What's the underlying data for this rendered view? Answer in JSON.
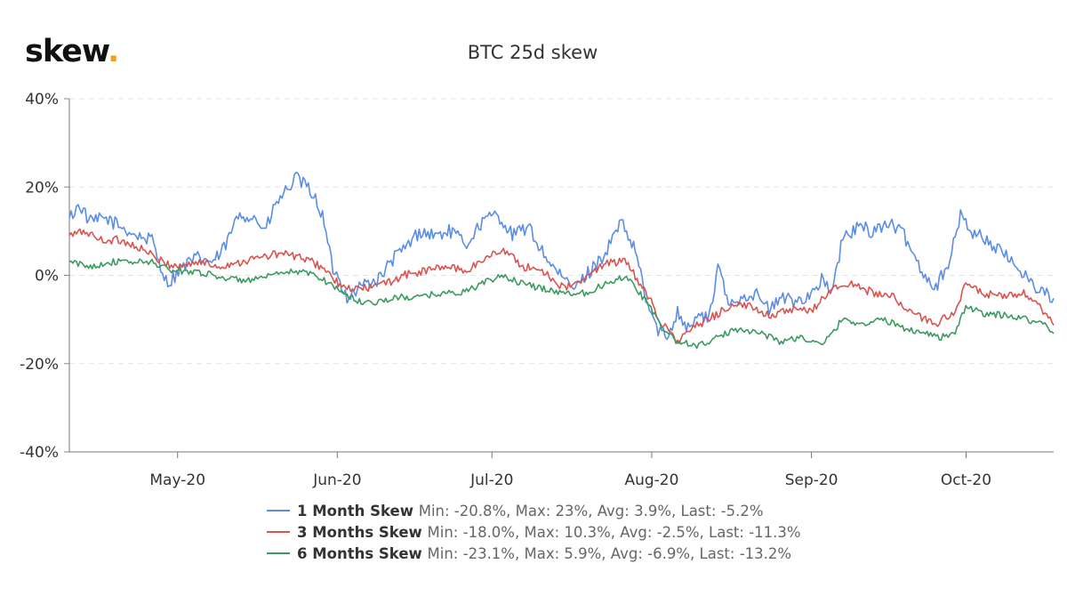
{
  "brand": {
    "logo_text": "skew",
    "logo_dot": ".",
    "dot_color": "#f0a020"
  },
  "chart_data": {
    "type": "line",
    "title": "BTC 25d skew",
    "xlabel": "",
    "ylabel": "",
    "x_range": [
      "2020-04-10",
      "2020-10-18"
    ],
    "ylim": [
      -40,
      40
    ],
    "y_ticks": [
      {
        "value": 40,
        "label": "40%"
      },
      {
        "value": 20,
        "label": "20%"
      },
      {
        "value": 0,
        "label": "0%"
      },
      {
        "value": -20,
        "label": "-20%"
      },
      {
        "value": -40,
        "label": "-40%"
      }
    ],
    "x_ticks": [
      {
        "date": "2020-05-01",
        "label": "May-20"
      },
      {
        "date": "2020-06-01",
        "label": "Jun-20"
      },
      {
        "date": "2020-07-01",
        "label": "Jul-20"
      },
      {
        "date": "2020-08-01",
        "label": "Aug-20"
      },
      {
        "date": "2020-09-01",
        "label": "Sep-20"
      },
      {
        "date": "2020-10-01",
        "label": "Oct-20"
      }
    ],
    "grid": {
      "horizontal": true,
      "style": "dashed"
    },
    "legend_position": "bottom",
    "series": [
      {
        "name": "1 Month Skew",
        "stats": "Min: -20.8%, Max: 23%, Avg: 3.9%, Last: -5.2%",
        "color": "#5b8de6",
        "points": [
          [
            "2020-04-10",
            13
          ],
          [
            "2020-04-12",
            16
          ],
          [
            "2020-04-14",
            12
          ],
          [
            "2020-04-17",
            13
          ],
          [
            "2020-04-20",
            11
          ],
          [
            "2020-04-23",
            9
          ],
          [
            "2020-04-26",
            8
          ],
          [
            "2020-04-29",
            -2
          ],
          [
            "2020-05-02",
            2
          ],
          [
            "2020-05-05",
            4
          ],
          [
            "2020-05-08",
            3
          ],
          [
            "2020-05-10",
            6
          ],
          [
            "2020-05-13",
            14
          ],
          [
            "2020-05-16",
            13
          ],
          [
            "2020-05-18",
            10
          ],
          [
            "2020-05-20",
            16
          ],
          [
            "2020-05-22",
            19
          ],
          [
            "2020-05-24",
            22
          ],
          [
            "2020-05-27",
            19
          ],
          [
            "2020-05-29",
            14
          ],
          [
            "2020-05-31",
            2
          ],
          [
            "2020-06-03",
            -5
          ],
          [
            "2020-06-06",
            -2
          ],
          [
            "2020-06-09",
            -1
          ],
          [
            "2020-06-12",
            4
          ],
          [
            "2020-06-14",
            6
          ],
          [
            "2020-06-17",
            10
          ],
          [
            "2020-06-20",
            9
          ],
          [
            "2020-06-23",
            10
          ],
          [
            "2020-06-26",
            7
          ],
          [
            "2020-06-29",
            12
          ],
          [
            "2020-07-02",
            14
          ],
          [
            "2020-07-05",
            9
          ],
          [
            "2020-07-08",
            11
          ],
          [
            "2020-07-11",
            5
          ],
          [
            "2020-07-14",
            0
          ],
          [
            "2020-07-17",
            -3
          ],
          [
            "2020-07-20",
            1
          ],
          [
            "2020-07-23",
            5
          ],
          [
            "2020-07-26",
            12
          ],
          [
            "2020-07-29",
            5
          ],
          [
            "2020-07-31",
            -6
          ],
          [
            "2020-08-02",
            -12
          ],
          [
            "2020-08-04",
            -14
          ],
          [
            "2020-08-06",
            -8
          ],
          [
            "2020-08-08",
            -12
          ],
          [
            "2020-08-10",
            -9
          ],
          [
            "2020-08-12",
            -10
          ],
          [
            "2020-08-14",
            2
          ],
          [
            "2020-08-16",
            -7
          ],
          [
            "2020-08-18",
            -5
          ],
          [
            "2020-08-21",
            -4
          ],
          [
            "2020-08-24",
            -8
          ],
          [
            "2020-08-26",
            -5
          ],
          [
            "2020-08-29",
            -6
          ],
          [
            "2020-09-01",
            -4
          ],
          [
            "2020-09-03",
            -1
          ],
          [
            "2020-09-05",
            -4
          ],
          [
            "2020-09-07",
            8
          ],
          [
            "2020-09-10",
            11
          ],
          [
            "2020-09-13",
            10
          ],
          [
            "2020-09-16",
            12
          ],
          [
            "2020-09-19",
            9
          ],
          [
            "2020-09-22",
            2
          ],
          [
            "2020-09-25",
            -3
          ],
          [
            "2020-09-28",
            4
          ],
          [
            "2020-09-30",
            14
          ],
          [
            "2020-10-02",
            10
          ],
          [
            "2020-10-05",
            8
          ],
          [
            "2020-10-08",
            5
          ],
          [
            "2020-10-11",
            2
          ],
          [
            "2020-10-14",
            -2
          ],
          [
            "2020-10-16",
            -4
          ],
          [
            "2020-10-18",
            -5.2
          ]
        ]
      },
      {
        "name": "3 Months Skew",
        "stats": "Min: -18.0%, Max: 10.3%, Avg: -2.5%, Last: -11.3%",
        "color": "#d9534f",
        "points": [
          [
            "2020-04-10",
            9
          ],
          [
            "2020-04-13",
            10
          ],
          [
            "2020-04-16",
            8
          ],
          [
            "2020-04-20",
            8
          ],
          [
            "2020-04-24",
            6
          ],
          [
            "2020-04-28",
            3
          ],
          [
            "2020-05-01",
            2
          ],
          [
            "2020-05-05",
            3
          ],
          [
            "2020-05-09",
            2
          ],
          [
            "2020-05-13",
            3
          ],
          [
            "2020-05-17",
            4
          ],
          [
            "2020-05-21",
            5
          ],
          [
            "2020-05-25",
            4
          ],
          [
            "2020-05-29",
            2
          ],
          [
            "2020-06-02",
            -3
          ],
          [
            "2020-06-06",
            -3
          ],
          [
            "2020-06-10",
            -2
          ],
          [
            "2020-06-14",
            0
          ],
          [
            "2020-06-18",
            1
          ],
          [
            "2020-06-22",
            2
          ],
          [
            "2020-06-26",
            1
          ],
          [
            "2020-06-30",
            4
          ],
          [
            "2020-07-03",
            6
          ],
          [
            "2020-07-07",
            2
          ],
          [
            "2020-07-11",
            1
          ],
          [
            "2020-07-15",
            -3
          ],
          [
            "2020-07-19",
            -1
          ],
          [
            "2020-07-23",
            3
          ],
          [
            "2020-07-27",
            3
          ],
          [
            "2020-07-31",
            -4
          ],
          [
            "2020-08-03",
            -11
          ],
          [
            "2020-08-06",
            -15
          ],
          [
            "2020-08-09",
            -12
          ],
          [
            "2020-08-12",
            -10
          ],
          [
            "2020-08-16",
            -7
          ],
          [
            "2020-08-20",
            -7
          ],
          [
            "2020-08-24",
            -9
          ],
          [
            "2020-08-28",
            -8
          ],
          [
            "2020-09-01",
            -8
          ],
          [
            "2020-09-05",
            -3
          ],
          [
            "2020-09-09",
            -2
          ],
          [
            "2020-09-13",
            -4
          ],
          [
            "2020-09-17",
            -5
          ],
          [
            "2020-09-21",
            -9
          ],
          [
            "2020-09-25",
            -11
          ],
          [
            "2020-09-29",
            -8
          ],
          [
            "2020-10-01",
            -2
          ],
          [
            "2020-10-04",
            -4
          ],
          [
            "2020-10-08",
            -5
          ],
          [
            "2020-10-12",
            -4
          ],
          [
            "2020-10-15",
            -7
          ],
          [
            "2020-10-18",
            -11.3
          ]
        ]
      },
      {
        "name": "6 Months Skew",
        "stats": "Min: -23.1%, Max: 5.9%, Avg: -6.9%, Last: -13.2%",
        "color": "#3c9a5f",
        "points": [
          [
            "2020-04-10",
            3
          ],
          [
            "2020-04-14",
            2
          ],
          [
            "2020-04-18",
            3
          ],
          [
            "2020-04-22",
            3
          ],
          [
            "2020-04-26",
            3
          ],
          [
            "2020-04-30",
            1
          ],
          [
            "2020-05-04",
            1
          ],
          [
            "2020-05-08",
            0
          ],
          [
            "2020-05-12",
            -1
          ],
          [
            "2020-05-16",
            -1
          ],
          [
            "2020-05-20",
            0
          ],
          [
            "2020-05-24",
            1
          ],
          [
            "2020-05-28",
            0
          ],
          [
            "2020-06-01",
            -3
          ],
          [
            "2020-06-05",
            -6
          ],
          [
            "2020-06-09",
            -6
          ],
          [
            "2020-06-13",
            -5
          ],
          [
            "2020-06-17",
            -5
          ],
          [
            "2020-06-21",
            -4
          ],
          [
            "2020-06-25",
            -4
          ],
          [
            "2020-06-29",
            -2
          ],
          [
            "2020-07-03",
            0
          ],
          [
            "2020-07-07",
            -2
          ],
          [
            "2020-07-11",
            -3
          ],
          [
            "2020-07-15",
            -4
          ],
          [
            "2020-07-19",
            -4
          ],
          [
            "2020-07-23",
            -2
          ],
          [
            "2020-07-27",
            0
          ],
          [
            "2020-07-31",
            -6
          ],
          [
            "2020-08-03",
            -12
          ],
          [
            "2020-08-06",
            -15
          ],
          [
            "2020-08-10",
            -16
          ],
          [
            "2020-08-14",
            -14
          ],
          [
            "2020-08-18",
            -12
          ],
          [
            "2020-08-22",
            -13
          ],
          [
            "2020-08-26",
            -15
          ],
          [
            "2020-08-30",
            -14
          ],
          [
            "2020-09-03",
            -16
          ],
          [
            "2020-09-07",
            -10
          ],
          [
            "2020-09-11",
            -11
          ],
          [
            "2020-09-15",
            -10
          ],
          [
            "2020-09-19",
            -12
          ],
          [
            "2020-09-23",
            -13
          ],
          [
            "2020-09-26",
            -14
          ],
          [
            "2020-09-29",
            -13
          ],
          [
            "2020-10-01",
            -7
          ],
          [
            "2020-10-05",
            -9
          ],
          [
            "2020-10-09",
            -9
          ],
          [
            "2020-10-13",
            -10
          ],
          [
            "2020-10-16",
            -11
          ],
          [
            "2020-10-18",
            -13.2
          ]
        ]
      }
    ]
  }
}
